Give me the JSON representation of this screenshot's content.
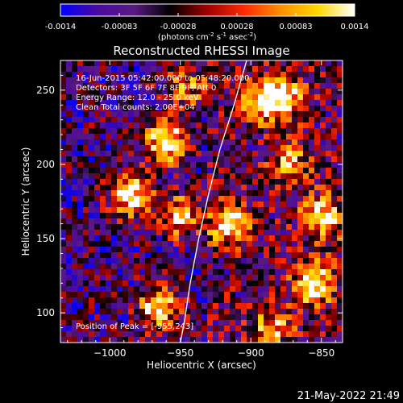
{
  "chart_data": {
    "type": "heatmap",
    "title": "Reconstructed RHESSI Image",
    "xlabel": "Heliocentric X (arcsec)",
    "ylabel": "Heliocentric Y (arcsec)",
    "xlim": [
      -1035,
      -835
    ],
    "ylim": [
      80,
      270
    ],
    "x_ticks": [
      -1000,
      -950,
      -900,
      -850
    ],
    "y_ticks": [
      100,
      150,
      200,
      250
    ],
    "colorbar": {
      "min": -0.0014,
      "max": 0.0014,
      "ticks": [
        "-0.0014",
        "-0.00083",
        "-0.00028",
        "0.00028",
        "0.00083",
        "0.0014"
      ],
      "unit_label": "(photons cm",
      "unit_exp1": "-2",
      "unit_mid": " s",
      "unit_exp2": "-1",
      "unit_mid2": " asec",
      "unit_exp3": "-2",
      "unit_end": ")",
      "colormap": [
        "#0000ff",
        "#4a0aa0",
        "#5a1a80",
        "#000000",
        "#a00000",
        "#ff2a00",
        "#ff9000",
        "#ffd800",
        "#ffffff"
      ]
    },
    "annotations": [
      "16-Jun-2015 05:42:00.000 to 05:48:20.000",
      "Detectors: 3F 5F 6F 7F 8F 9F, Att 0",
      "Energy Range: 12.0 - 25.0 keV",
      "Clean     Total counts: 2.00E+04"
    ],
    "peak_label": "Position of Peak = [-955,243]",
    "limb": [
      [
        -903,
        270
      ],
      [
        -912,
        240
      ],
      [
        -922,
        210
      ],
      [
        -930,
        180
      ],
      [
        -937,
        150
      ],
      [
        -943,
        120
      ],
      [
        -947,
        95
      ],
      [
        -950,
        80
      ]
    ],
    "bright_sources": [
      {
        "x": -960,
        "y": 215,
        "amp": 1.0
      },
      {
        "x": -985,
        "y": 180,
        "amp": 0.9
      },
      {
        "x": -950,
        "y": 165,
        "amp": 0.8
      },
      {
        "x": -915,
        "y": 160,
        "amp": 0.8
      },
      {
        "x": -965,
        "y": 103,
        "amp": 0.85
      },
      {
        "x": -855,
        "y": 120,
        "amp": 0.9
      },
      {
        "x": -850,
        "y": 165,
        "amp": 0.75
      },
      {
        "x": -877,
        "y": 245,
        "amp": 0.8
      },
      {
        "x": -893,
        "y": 243,
        "amp": 0.7
      },
      {
        "x": -872,
        "y": 200,
        "amp": 0.6
      },
      {
        "x": -885,
        "y": 90,
        "amp": 0.55
      },
      {
        "x": -945,
        "y": 252,
        "amp": 0.55
      }
    ]
  },
  "footer": {
    "timestamp": "21-May-2022 21:49"
  }
}
